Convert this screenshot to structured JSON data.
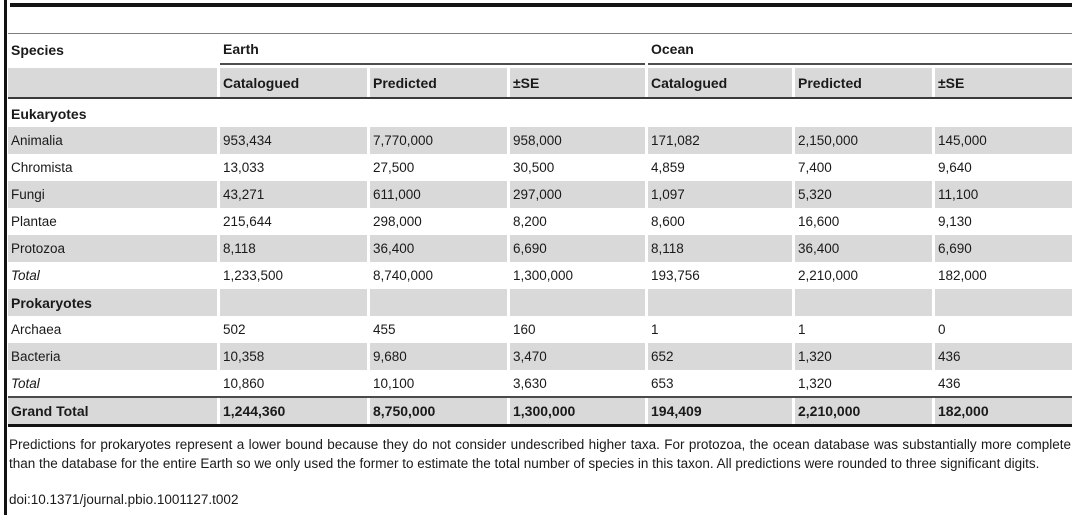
{
  "table": {
    "species_header": "Species",
    "group_headers": [
      "Earth",
      "Ocean"
    ],
    "sub_headers": [
      "Catalogued",
      "Predicted",
      "±SE",
      "Catalogued",
      "Predicted",
      "±SE"
    ],
    "rows": [
      {
        "label": "Eukaryotes",
        "style": "section",
        "values": [
          "",
          "",
          "",
          "",
          "",
          ""
        ]
      },
      {
        "label": "Animalia",
        "style": "",
        "values": [
          "953,434",
          "7,770,000",
          "958,000",
          "171,082",
          "2,150,000",
          "145,000"
        ]
      },
      {
        "label": "Chromista",
        "style": "",
        "values": [
          "13,033",
          "27,500",
          "30,500",
          "4,859",
          "7,400",
          "9,640"
        ]
      },
      {
        "label": "Fungi",
        "style": "",
        "values": [
          "43,271",
          "611,000",
          "297,000",
          "1,097",
          "5,320",
          "11,100"
        ]
      },
      {
        "label": "Plantae",
        "style": "",
        "values": [
          "215,644",
          "298,000",
          "8,200",
          "8,600",
          "16,600",
          "9,130"
        ]
      },
      {
        "label": "Protozoa",
        "style": "",
        "values": [
          "8,118",
          "36,400",
          "6,690",
          "8,118",
          "36,400",
          "6,690"
        ]
      },
      {
        "label": "Total",
        "style": "total",
        "values": [
          "1,233,500",
          "8,740,000",
          "1,300,000",
          "193,756",
          "2,210,000",
          "182,000"
        ]
      },
      {
        "label": "Prokaryotes",
        "style": "section",
        "values": [
          "",
          "",
          "",
          "",
          "",
          ""
        ]
      },
      {
        "label": "Archaea",
        "style": "",
        "values": [
          "502",
          "455",
          "160",
          "1",
          "1",
          "0"
        ]
      },
      {
        "label": "Bacteria",
        "style": "",
        "values": [
          "10,358",
          "9,680",
          "3,470",
          "652",
          "1,320",
          "436"
        ]
      },
      {
        "label": "Total",
        "style": "total",
        "values": [
          "10,860",
          "10,100",
          "3,630",
          "653",
          "1,320",
          "436"
        ]
      },
      {
        "label": "Grand Total",
        "style": "grand",
        "values": [
          "1,244,360",
          "8,750,000",
          "1,300,000",
          "194,409",
          "2,210,000",
          "182,000"
        ]
      }
    ]
  },
  "footnote": "Predictions for prokaryotes represent a lower bound because they do not consider undescribed higher taxa. For protozoa, the ocean database was substantially more complete than the database for the entire Earth so we only used the former to estimate the total number of species in this taxon. All predictions were rounded to three significant digits.",
  "doi": "doi:10.1371/journal.pbio.1001127.t002",
  "colors": {
    "stripe_gray": "#d9d9d9",
    "rule_black": "#141414",
    "rule_dark_gray": "#4d4d4d",
    "text": "#1a1a1a"
  }
}
